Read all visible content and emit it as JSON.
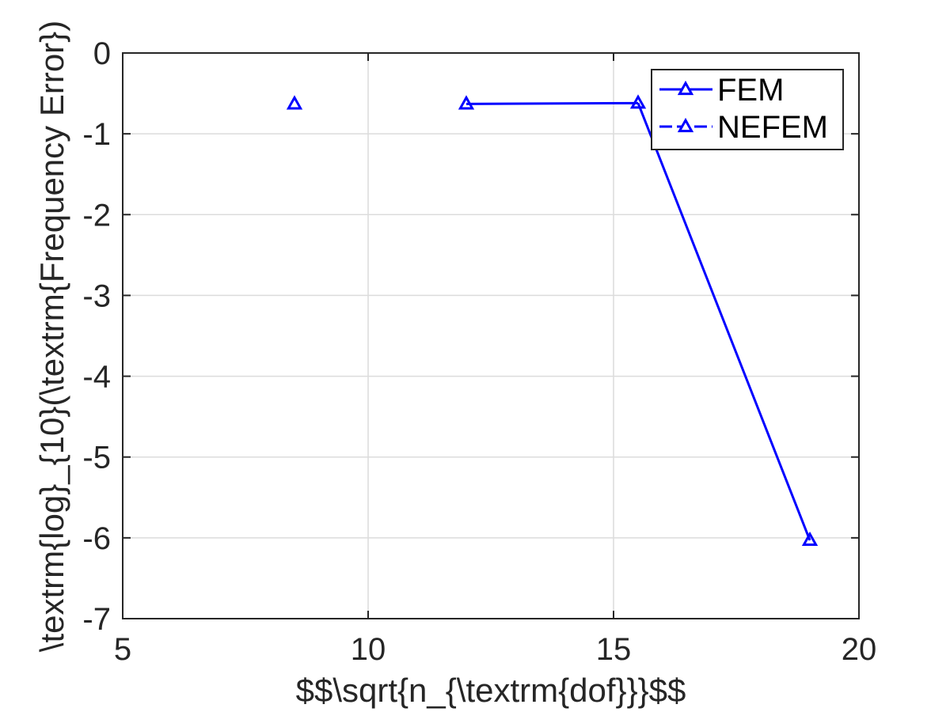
{
  "chart_data": {
    "type": "line",
    "title": "",
    "xlabel": "$$\\sqrt{n_{\\textrm{dof}}}$$",
    "ylabel": "\\textrm{log}_{10}(\\textrm{Frequency Error})",
    "xlim": [
      5,
      20
    ],
    "ylim": [
      -7,
      0
    ],
    "xticks": [
      5,
      10,
      15,
      20
    ],
    "yticks": [
      0,
      -1,
      -2,
      -3,
      -4,
      -5,
      -6,
      -7
    ],
    "xtick_labels": [
      "5",
      "10",
      "15",
      "20"
    ],
    "ytick_labels": [
      "0",
      "-1",
      "-2",
      "-3",
      "-4",
      "-5",
      "-6",
      "-7"
    ],
    "grid": true,
    "legend_position": "top-right",
    "series": [
      {
        "name": "FEM",
        "color": "#0000ff",
        "line_style": "solid",
        "marker": "triangle",
        "x": [
          8.5,
          12.0,
          15.5,
          19.0
        ],
        "y": [
          -0.63,
          -0.63,
          -0.62,
          -6.03
        ],
        "segments_drawn": [
          [
            1,
            2
          ],
          [
            2,
            3
          ]
        ]
      },
      {
        "name": "NEFEM",
        "color": "#0000ff",
        "line_style": "dashed",
        "marker": "triangle",
        "x": [],
        "y": []
      }
    ]
  }
}
